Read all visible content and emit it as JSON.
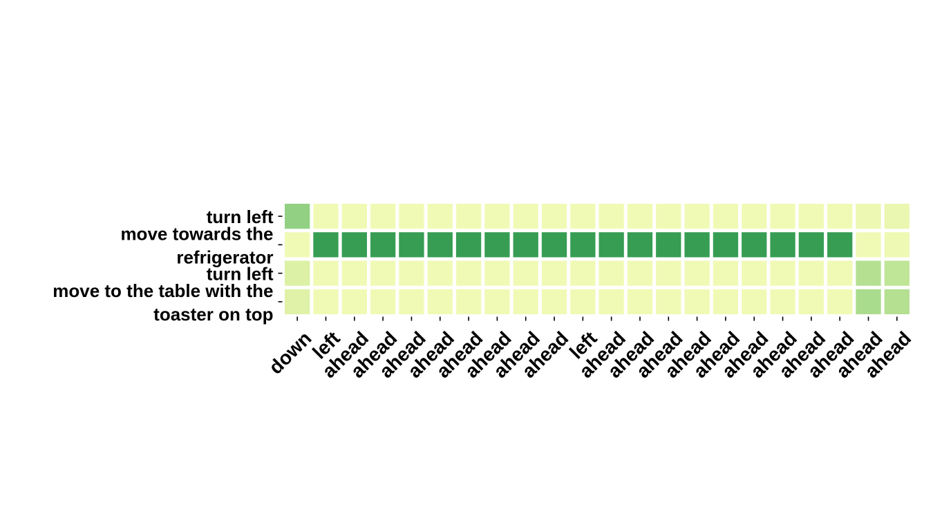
{
  "chart_data": {
    "type": "heatmap",
    "title": "",
    "xlabel": "",
    "ylabel": "",
    "rows": [
      [
        "turn left"
      ],
      [
        "move towards the",
        "refrigerator"
      ],
      [
        "turn left"
      ],
      [
        "move to the table with the",
        "toaster on top"
      ]
    ],
    "columns": [
      "down",
      "left",
      "ahead",
      "ahead",
      "ahead",
      "ahead",
      "ahead",
      "ahead",
      "ahead",
      "ahead",
      "left",
      "ahead",
      "ahead",
      "ahead",
      "ahead",
      "ahead",
      "ahead",
      "ahead",
      "ahead",
      "ahead",
      "ahead",
      "ahead"
    ],
    "values": [
      [
        0.55,
        0.05,
        0.05,
        0.05,
        0.05,
        0.05,
        0.05,
        0.05,
        0.05,
        0.05,
        0.05,
        0.05,
        0.05,
        0.05,
        0.05,
        0.05,
        0.05,
        0.05,
        0.05,
        0.05,
        0.08,
        0.1
      ],
      [
        0.05,
        0.95,
        0.95,
        0.95,
        0.95,
        0.95,
        0.95,
        0.95,
        0.95,
        0.95,
        0.95,
        0.95,
        0.95,
        0.95,
        0.95,
        0.95,
        0.95,
        0.95,
        0.95,
        0.95,
        0.05,
        0.07
      ],
      [
        0.2,
        0.05,
        0.05,
        0.05,
        0.05,
        0.05,
        0.05,
        0.05,
        0.05,
        0.05,
        0.05,
        0.05,
        0.05,
        0.05,
        0.05,
        0.05,
        0.05,
        0.05,
        0.05,
        0.05,
        0.4,
        0.35
      ],
      [
        0.18,
        0.05,
        0.05,
        0.05,
        0.05,
        0.05,
        0.05,
        0.05,
        0.05,
        0.05,
        0.05,
        0.05,
        0.05,
        0.05,
        0.05,
        0.05,
        0.05,
        0.05,
        0.05,
        0.05,
        0.45,
        0.4
      ]
    ],
    "colormap": "YlGn",
    "colorbar": false,
    "grid": false
  }
}
